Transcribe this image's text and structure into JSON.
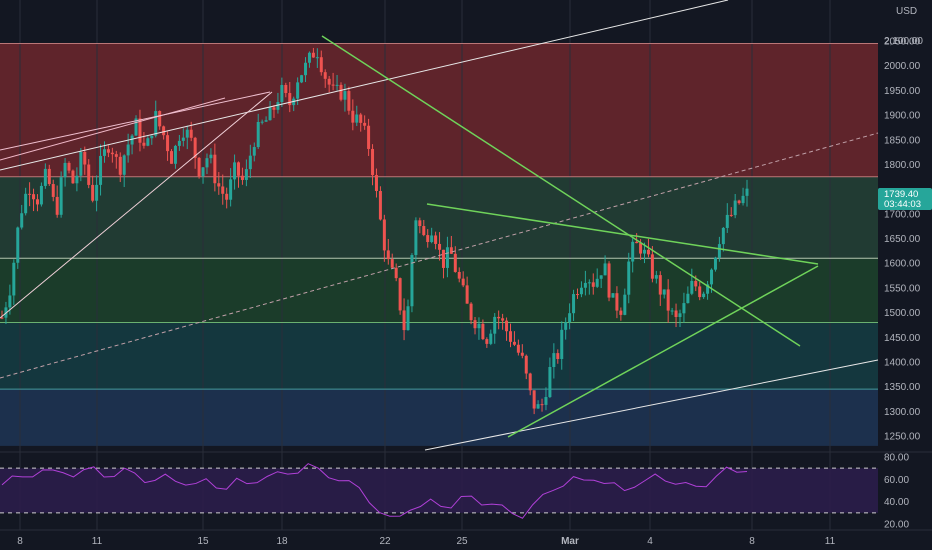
{
  "currency_label": "USD",
  "price_tag": {
    "price": "1739.40",
    "countdown": "03:44:03"
  },
  "colors": {
    "background": "#131722",
    "up_candle": "#26a69a",
    "down_candle": "#ef5350",
    "trendline_green": "#6fd35a",
    "trendline_white": "#e8e8e8",
    "rsi_line": "#b040d8",
    "price_tag": "#26a69a"
  },
  "chart_data": {
    "type": "candlestick",
    "y_axis": {
      "ticks": [
        1250,
        1300,
        1350,
        1400,
        1450,
        1500,
        1550,
        1600,
        1650,
        1700,
        1750,
        1800,
        1850,
        1900,
        1950,
        2000,
        2050
      ],
      "prefix_top": "2,100.00"
    },
    "x_axis": {
      "ticks": [
        "8",
        "11",
        "15",
        "18",
        "22",
        "25",
        "Mar",
        "4",
        "8",
        "11"
      ]
    },
    "zones": [
      {
        "from": 1775,
        "to": 2045,
        "color": "#7a2a2f"
      },
      {
        "from": 1610,
        "to": 1775,
        "color": "#27483a"
      },
      {
        "from": 1480,
        "to": 1610,
        "color": "#1f4a2e"
      },
      {
        "from": 1345,
        "to": 1480,
        "color": "#164348"
      },
      {
        "from": 1230,
        "to": 1345,
        "color": "#203a5c"
      }
    ],
    "horizontal_lines": [
      2045,
      1775,
      1610,
      1480,
      1345
    ],
    "last_price": 1739.4,
    "candle_path": [
      1490,
      1560,
      1700,
      1760,
      1730,
      1780,
      1700,
      1800,
      1760,
      1820,
      1730,
      1800,
      1850,
      1790,
      1840,
      1880,
      1820,
      1900,
      1860,
      1810,
      1880,
      1850,
      1790,
      1820,
      1760,
      1730,
      1790,
      1760,
      1850,
      1880,
      1900,
      1950,
      1920,
      1980,
      2000,
      2040,
      1980,
      1940,
      1950,
      1900,
      1880,
      1830,
      1700,
      1600,
      1550,
      1450,
      1700,
      1650,
      1680,
      1600,
      1620,
      1560,
      1500,
      1480,
      1450,
      1500,
      1470,
      1440,
      1400,
      1320,
      1300,
      1380,
      1420,
      1500,
      1550,
      1580,
      1560,
      1600,
      1520,
      1510,
      1620,
      1640,
      1600,
      1560,
      1520,
      1480,
      1510,
      1560,
      1540,
      1590,
      1660,
      1690,
      1720,
      1739.4
    ],
    "rsi": {
      "ticks": [
        20,
        40,
        60,
        80
      ],
      "levels": [
        70,
        30
      ],
      "values": [
        55,
        60,
        63,
        65,
        67,
        66,
        68,
        64,
        66,
        70,
        65,
        63,
        67,
        66,
        60,
        58,
        62,
        60,
        57,
        54,
        59,
        55,
        52,
        58,
        56,
        60,
        62,
        64,
        66,
        68,
        72,
        68,
        64,
        60,
        56,
        52,
        42,
        30,
        24,
        28,
        35,
        34,
        40,
        38,
        36,
        42,
        44,
        40,
        38,
        34,
        30,
        28,
        36,
        44,
        52,
        56,
        60,
        58,
        62,
        57,
        54,
        50,
        56,
        58,
        62,
        60,
        58,
        55,
        52,
        56,
        64,
        68,
        66,
        70
      ]
    }
  }
}
